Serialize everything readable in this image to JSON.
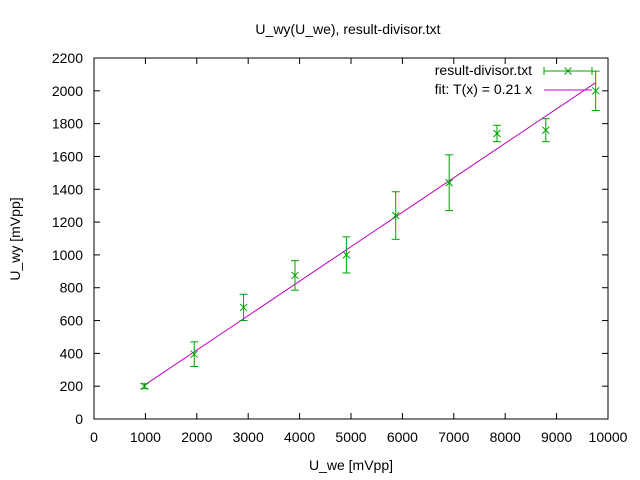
{
  "chart_data": {
    "type": "scatter",
    "title": "U_wy(U_we), result-divisor.txt",
    "xlabel": "U_we [mVpp]",
    "ylabel": "U_wy [mVpp]",
    "xlim": [
      0,
      10000
    ],
    "ylim": [
      0,
      2200
    ],
    "x_ticks": [
      0,
      1000,
      2000,
      3000,
      4000,
      5000,
      6000,
      7000,
      8000,
      9000,
      10000
    ],
    "y_ticks": [
      0,
      200,
      400,
      600,
      800,
      1000,
      1200,
      1400,
      1600,
      1800,
      2000,
      2200
    ],
    "x_tick_labels": [
      "0",
      "1000",
      "2000",
      "3000",
      "4000",
      "5000",
      "6000",
      "7000",
      "8000",
      "9000",
      "10000"
    ],
    "y_tick_labels": [
      "0",
      "200",
      "400",
      "600",
      "800",
      "1000",
      "1200",
      "1400",
      "1600",
      "1800",
      "2000",
      "2200"
    ],
    "grid": false,
    "legend_position": "top-right",
    "series": [
      {
        "name": "result-divisor.txt",
        "kind": "points-with-yerrorbars",
        "color": "#00a000",
        "x": [
          980,
          1950,
          2910,
          3910,
          4910,
          5870,
          6910,
          7840,
          8790,
          9760
        ],
        "y": [
          200,
          395,
          680,
          875,
          1000,
          1240,
          1440,
          1740,
          1760,
          2000
        ],
        "yerr": [
          15,
          75,
          80,
          90,
          110,
          145,
          170,
          50,
          70,
          120
        ]
      },
      {
        "name": "fit: T(x) = 0.21 x",
        "kind": "line",
        "color": "#c000c0",
        "slope": 0.21,
        "x_range": [
          980,
          9760
        ]
      }
    ]
  }
}
